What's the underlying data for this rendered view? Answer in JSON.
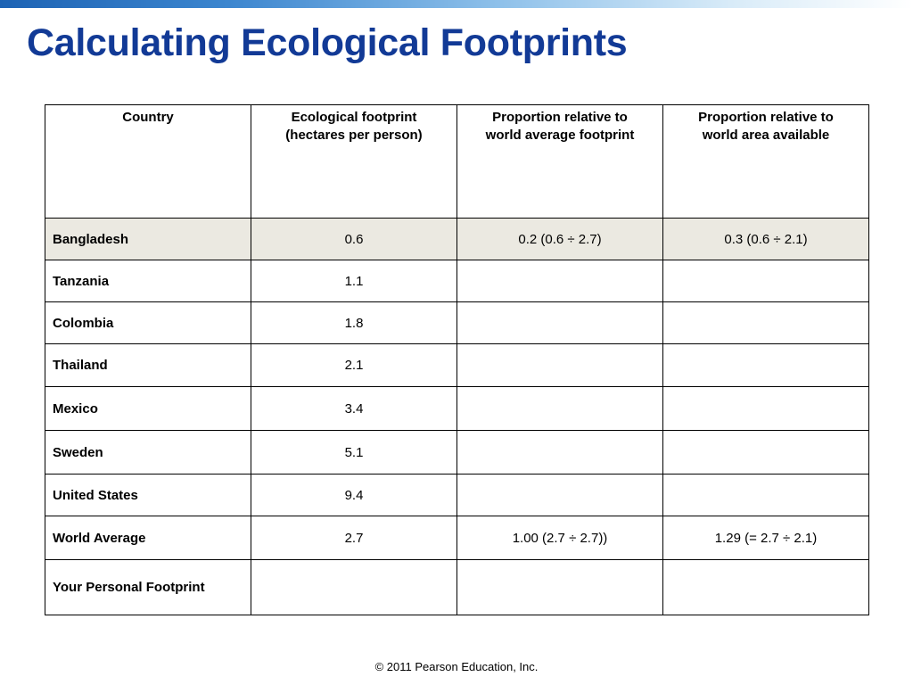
{
  "slide": {
    "title": "Calculating Ecological Footprints",
    "footer": "© 2011 Pearson Education, Inc."
  },
  "table": {
    "headers": [
      "Country",
      "Ecological footprint\n(hectares per person)",
      "Proportion relative to\nworld average footprint",
      "Proportion relative to\nworld area available"
    ],
    "rows": [
      {
        "country": "Bangladesh",
        "footprint": "0.6",
        "rel_avg": "0.2  (0.6 ÷ 2.7)",
        "rel_area": "0.3  (0.6 ÷ 2.1)"
      },
      {
        "country": "Tanzania",
        "footprint": "1.1",
        "rel_avg": "",
        "rel_area": ""
      },
      {
        "country": "Colombia",
        "footprint": "1.8",
        "rel_avg": "",
        "rel_area": ""
      },
      {
        "country": "Thailand",
        "footprint": "2.1",
        "rel_avg": "",
        "rel_area": ""
      },
      {
        "country": "Mexico",
        "footprint": "3.4",
        "rel_avg": "",
        "rel_area": ""
      },
      {
        "country": "Sweden",
        "footprint": "5.1",
        "rel_avg": "",
        "rel_area": ""
      },
      {
        "country": "United States",
        "footprint": "9.4",
        "rel_avg": "",
        "rel_area": ""
      },
      {
        "country": "World Average",
        "footprint": "2.7",
        "rel_avg": "1.00 (2.7 ÷ 2.7))",
        "rel_area": "1.29 (= 2.7 ÷ 2.1)"
      },
      {
        "country": "Your Personal Footprint",
        "footprint": "",
        "rel_avg": "",
        "rel_area": ""
      }
    ]
  },
  "colors": {
    "title": "#123a96",
    "highlight_row": "#ebe9e1"
  }
}
